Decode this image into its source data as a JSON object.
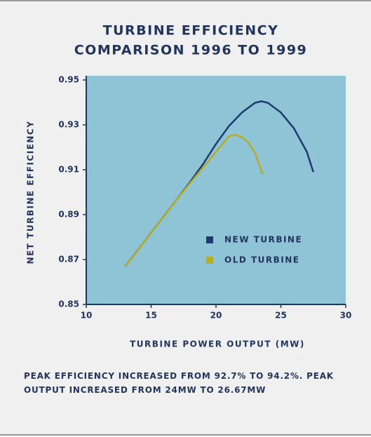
{
  "chart_data": {
    "type": "line",
    "title": [
      "TURBINE EFFICIENCY",
      "COMPARISON 1996 TO 1999"
    ],
    "x_label": "TURBINE POWER OUTPUT (MW)",
    "y_label": "NET TURBINE EFFICIENCY",
    "xlim": [
      10,
      30
    ],
    "xticks": [
      10,
      15,
      20,
      25,
      30
    ],
    "ylim": [
      0.85,
      0.95
    ],
    "yticks": [
      0.85,
      0.87,
      0.89,
      0.91,
      0.93,
      0.95
    ],
    "plot_background": "#8fc4d7",
    "legend": "right",
    "series": [
      {
        "name": "NEW TURBINE",
        "color": "#1f3a6e",
        "x": [
          13,
          14,
          15,
          16,
          17,
          18,
          19,
          20,
          21,
          22,
          23,
          23.5,
          24,
          25,
          26,
          27,
          27.5
        ],
        "values": [
          0.867,
          0.8745,
          0.882,
          0.8895,
          0.897,
          0.9045,
          0.9125,
          0.9215,
          0.9295,
          0.9355,
          0.9398,
          0.9405,
          0.9398,
          0.9355,
          0.9285,
          0.918,
          0.909
        ]
      },
      {
        "name": "OLD TURBINE",
        "color": "#b7ae1f",
        "x": [
          13,
          14,
          15,
          16,
          17,
          18,
          19,
          20,
          20.5,
          21,
          21.5,
          22,
          22.5,
          23,
          23.6
        ],
        "values": [
          0.867,
          0.8745,
          0.882,
          0.8895,
          0.897,
          0.904,
          0.911,
          0.918,
          0.9215,
          0.925,
          0.9255,
          0.9245,
          0.922,
          0.9175,
          0.908
        ]
      }
    ],
    "caption": "PEAK EFFICIENCY INCREASED FROM 92.7% TO 94.2%. PEAK OUTPUT INCREASED FROM 24MW TO 26.67MW"
  }
}
